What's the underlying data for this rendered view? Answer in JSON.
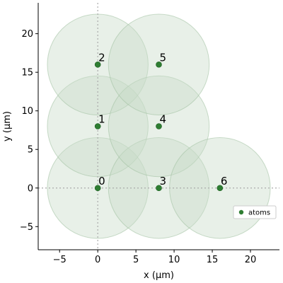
{
  "chart_data": {
    "type": "scatter",
    "xlabel": "x (µm)",
    "ylabel": "y (µm)",
    "xlim": [
      -7.8,
      23.8
    ],
    "ylim": [
      -8.0,
      24.0
    ],
    "x_ticks": [
      -5,
      0,
      5,
      10,
      15,
      20
    ],
    "y_ticks": [
      -5,
      0,
      5,
      10,
      15,
      20
    ],
    "grid": false,
    "zero_lines": true,
    "legend_position": "right",
    "series": [
      {
        "name": "atoms",
        "color": "#2e7d32",
        "points": [
          {
            "label": "0",
            "x": 0,
            "y": 0
          },
          {
            "label": "1",
            "x": 0,
            "y": 8
          },
          {
            "label": "2",
            "x": 0,
            "y": 16
          },
          {
            "label": "3",
            "x": 8,
            "y": 0
          },
          {
            "label": "4",
            "x": 8,
            "y": 8
          },
          {
            "label": "5",
            "x": 8,
            "y": 16
          },
          {
            "label": "6",
            "x": 16,
            "y": 0
          }
        ]
      }
    ],
    "blockade_radius": 6.6,
    "blockade_color": "#c8dcc8"
  }
}
